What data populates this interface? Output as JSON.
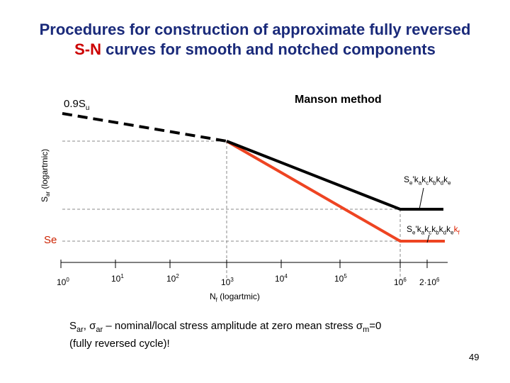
{
  "title": {
    "line1": "Procedures for construction of approximate fully reversed",
    "line2_colored": "S-N",
    "line2_rest": " curves for smooth and notched components"
  },
  "diagram": {
    "method_label": "Manson method",
    "top_label_main": "0.9S",
    "top_label_sub": "u",
    "y_axis_label_main": "S",
    "y_axis_label_sub": "ar",
    "y_axis_label_rest": " (logartmic)",
    "se_label": "Se",
    "x_axis_label_main": "N",
    "x_axis_label_sub": "f",
    "x_axis_label_rest": " (logartmic)",
    "x_ticks": [
      {
        "base": "10",
        "exp": "0"
      },
      {
        "base": "10",
        "exp": "1"
      },
      {
        "base": "10",
        "exp": "2"
      },
      {
        "base": "10",
        "exp": "3"
      },
      {
        "base": "10",
        "exp": "4"
      },
      {
        "base": "10",
        "exp": "5"
      },
      {
        "base": "10",
        "exp": "6"
      },
      {
        "base": "2·10",
        "exp": "6"
      }
    ],
    "smooth_label": {
      "parts": [
        {
          "t": "S",
          "s": "n"
        },
        {
          "t": "e",
          "s": "sub"
        },
        {
          "t": "'k",
          "s": "n"
        },
        {
          "t": "a",
          "s": "sub"
        },
        {
          "t": "k",
          "s": "n"
        },
        {
          "t": "c",
          "s": "sub"
        },
        {
          "t": "k",
          "s": "n"
        },
        {
          "t": "b",
          "s": "sub"
        },
        {
          "t": "k",
          "s": "n"
        },
        {
          "t": "d",
          "s": "sub"
        },
        {
          "t": "k",
          "s": "n"
        },
        {
          "t": "e",
          "s": "sub"
        }
      ]
    },
    "notched_label": {
      "parts": [
        {
          "t": "S",
          "s": "n"
        },
        {
          "t": "e",
          "s": "sub"
        },
        {
          "t": "'k",
          "s": "n"
        },
        {
          "t": "a",
          "s": "sub"
        },
        {
          "t": "k",
          "s": "n"
        },
        {
          "t": "c",
          "s": "sub"
        },
        {
          "t": "k",
          "s": "n"
        },
        {
          "t": "b",
          "s": "sub"
        },
        {
          "t": "k",
          "s": "n"
        },
        {
          "t": "d",
          "s": "sub"
        },
        {
          "t": "k",
          "s": "n"
        },
        {
          "t": "e",
          "s": "sub"
        },
        {
          "t": "k",
          "s": "red"
        },
        {
          "t": "f",
          "s": "redsub"
        }
      ]
    },
    "colors": {
      "smooth_curve": "#000000",
      "notched_curve": "#ee4422",
      "title": "#1a2a7a",
      "title_accent": "#cc0000"
    }
  },
  "footnote": {
    "line1_parts": [
      {
        "t": "S",
        "s": "n"
      },
      {
        "t": "ar",
        "s": "sub"
      },
      {
        "t": ", ",
        "s": "n"
      },
      {
        "t": "σ",
        "s": "n"
      },
      {
        "t": "ar",
        "s": "sub"
      },
      {
        "t": " – nominal/local stress amplitude at zero mean stress ",
        "s": "n"
      },
      {
        "t": "σ",
        "s": "n"
      },
      {
        "t": "m",
        "s": "sub"
      },
      {
        "t": "=0",
        "s": "n"
      }
    ],
    "line2": "(fully reversed cycle)!"
  },
  "page_number": "49"
}
